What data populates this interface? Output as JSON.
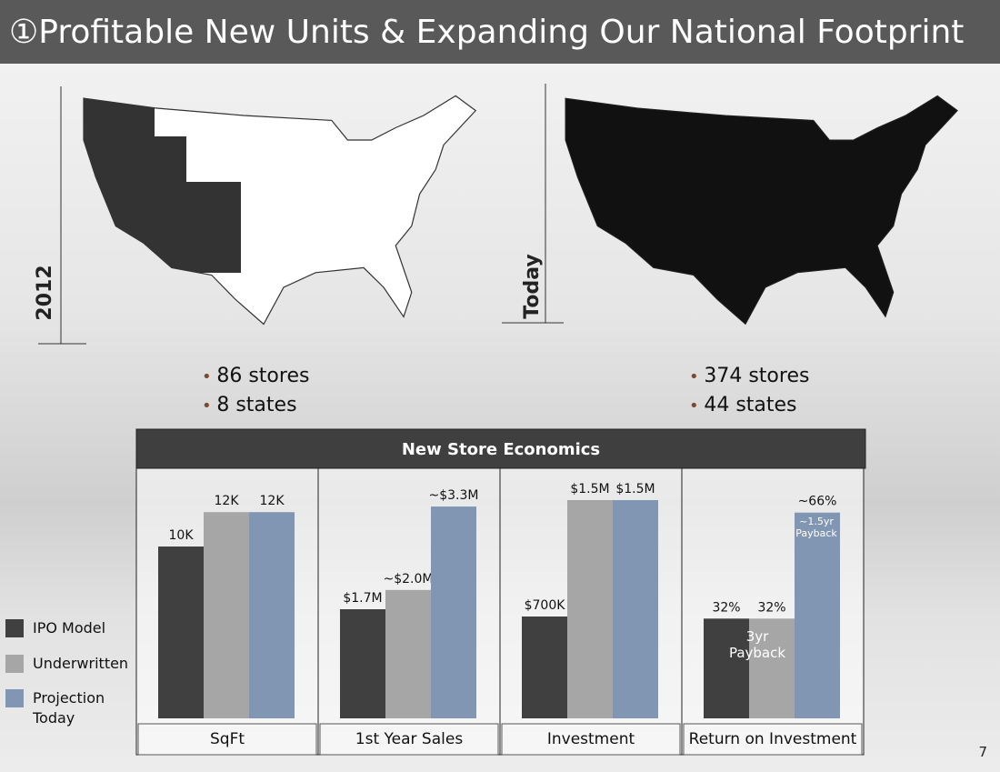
{
  "header": {
    "title": "①Profitable New Units & Expanding Our National Footprint"
  },
  "maps": [
    {
      "label": "2012",
      "bullets": [
        "86 stores",
        "8 states"
      ]
    },
    {
      "label": "Today",
      "bullets": [
        "374 stores",
        "44 states"
      ]
    }
  ],
  "economics_title": "New Store Economics",
  "legend": [
    {
      "name": "IPO Model",
      "color": "#404040"
    },
    {
      "name": "Underwritten",
      "color": "#a6a6a6"
    },
    {
      "name": "Projection Today",
      "color": "#8096b2"
    }
  ],
  "chart_data": [
    {
      "type": "bar",
      "xlabel": "SqFt",
      "values": [
        10000,
        12000,
        12000
      ],
      "value_labels": [
        "10K",
        "12K",
        "12K"
      ],
      "ylim": [
        0,
        12700
      ]
    },
    {
      "type": "bar",
      "xlabel": "1st Year Sales",
      "values": [
        1700000,
        2000000,
        3300000
      ],
      "value_labels": [
        "$1.7M",
        "~$2.0M",
        "~$3.3M"
      ],
      "ylim": [
        0,
        3400000
      ]
    },
    {
      "type": "bar",
      "xlabel": "Investment",
      "values": [
        700000,
        1500000,
        1500000
      ],
      "value_labels": [
        "$700K",
        "$1.5M",
        "$1.5M"
      ],
      "ylim": [
        0,
        1500000
      ]
    },
    {
      "type": "bar",
      "xlabel": "Return on Investment",
      "values": [
        32,
        32,
        66
      ],
      "value_labels": [
        "32%",
        "32%",
        "~66%"
      ],
      "ylim": [
        0,
        70
      ],
      "annotations": [
        "3yr Payback",
        "~1.5yr Payback"
      ]
    }
  ],
  "page_number": "7"
}
